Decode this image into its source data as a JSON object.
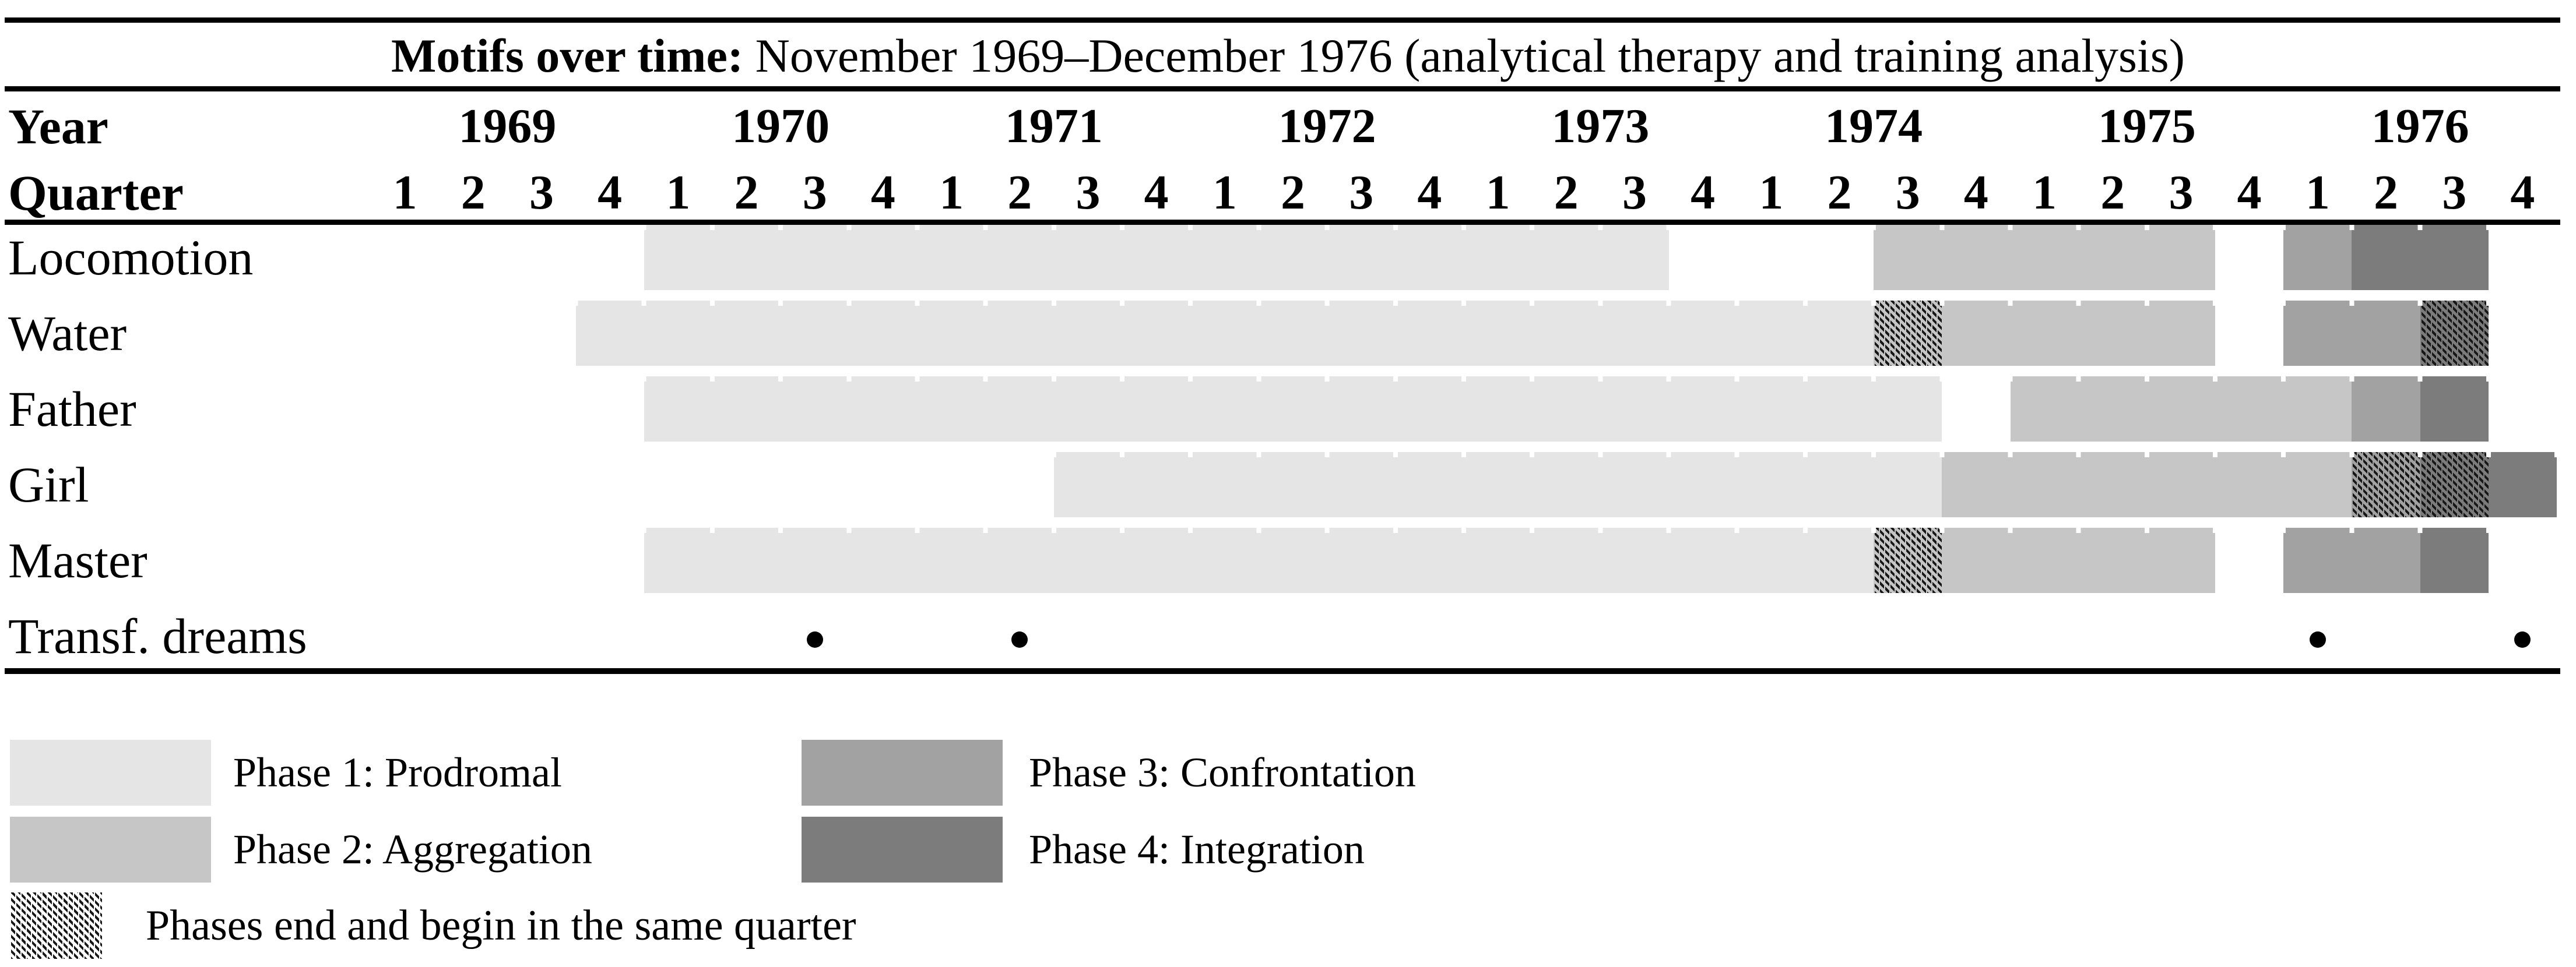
{
  "title": {
    "bold": "Motifs over time:",
    "rest": " November 1969–December 1976 (analytical therapy and training analysis)"
  },
  "header": {
    "year_label": "Year",
    "quarter_label": "Quarter",
    "years": [
      "1969",
      "1970",
      "1971",
      "1972",
      "1973",
      "1974",
      "1975",
      "1976"
    ],
    "quarter_numbers": [
      "1",
      "2",
      "3",
      "4"
    ]
  },
  "chart_data": {
    "type": "gantt-timeline",
    "title": "Motifs over time: November 1969–December 1976 (analytical therapy and training analysis)",
    "x_axis": {
      "unit": "quarter",
      "start": "1969 Q1",
      "end": "1976 Q4",
      "total_quarters": 32
    },
    "phases": {
      "1": "Prodromal",
      "2": "Aggregation",
      "3": "Confrontation",
      "4": "Integration"
    },
    "rows": [
      {
        "label": "Locomotion",
        "segments": [
          {
            "phase": 1,
            "from": 4,
            "to": 18,
            "range": "1970 Q1 – 1973 Q3"
          },
          {
            "phase": 2,
            "from": 22,
            "to": 26,
            "range": "1974 Q3 – 1975 Q3"
          },
          {
            "phase": 3,
            "from": 28,
            "to": 28,
            "range": "1976 Q1"
          },
          {
            "phase": 4,
            "from": 29,
            "to": 30,
            "range": "1976 Q2 – 1976 Q3"
          }
        ]
      },
      {
        "label": "Water",
        "segments": [
          {
            "phase": 1,
            "from": 3,
            "to": 21,
            "range": "1969 Q4 – 1974 Q2"
          },
          {
            "phase": 2,
            "from": 22,
            "to": 22,
            "hatch": true,
            "range": "1974 Q3"
          },
          {
            "phase": 2,
            "from": 23,
            "to": 26,
            "range": "1974 Q4 – 1975 Q3"
          },
          {
            "phase": 3,
            "from": 28,
            "to": 29,
            "range": "1976 Q1 – 1976 Q2"
          },
          {
            "phase": 4,
            "from": 30,
            "to": 30,
            "hatch": true,
            "range": "1976 Q3"
          }
        ]
      },
      {
        "label": "Father",
        "segments": [
          {
            "phase": 1,
            "from": 4,
            "to": 22,
            "range": "1970 Q1 – 1974 Q3"
          },
          {
            "phase": 2,
            "from": 24,
            "to": 28,
            "range": "1975 Q1 – 1976 Q1"
          },
          {
            "phase": 3,
            "from": 29,
            "to": 29,
            "range": "1976 Q2"
          },
          {
            "phase": 4,
            "from": 30,
            "to": 30,
            "range": "1976 Q3"
          }
        ]
      },
      {
        "label": "Girl",
        "segments": [
          {
            "phase": 1,
            "from": 10,
            "to": 22,
            "range": "1971 Q3 – 1974 Q3"
          },
          {
            "phase": 2,
            "from": 23,
            "to": 28,
            "range": "1974 Q4 – 1976 Q1"
          },
          {
            "phase": 3,
            "from": 29,
            "to": 29,
            "hatch": true,
            "range": "1976 Q2"
          },
          {
            "phase": 4,
            "from": 30,
            "to": 30,
            "hatch": true,
            "range": "1976 Q3"
          },
          {
            "phase": 4,
            "from": 31,
            "to": 31,
            "range": "1976 Q4"
          }
        ]
      },
      {
        "label": "Master",
        "segments": [
          {
            "phase": 1,
            "from": 4,
            "to": 21,
            "range": "1970 Q1 – 1974 Q2"
          },
          {
            "phase": 2,
            "from": 22,
            "to": 22,
            "hatch": true,
            "range": "1974 Q3"
          },
          {
            "phase": 2,
            "from": 23,
            "to": 26,
            "range": "1974 Q4 – 1975 Q3"
          },
          {
            "phase": 3,
            "from": 28,
            "to": 29,
            "range": "1976 Q1 – 1976 Q2"
          },
          {
            "phase": 4,
            "from": 30,
            "to": 30,
            "range": "1976 Q3"
          }
        ]
      },
      {
        "label": "Transf. dreams",
        "dots": [
          6,
          9,
          28,
          31
        ],
        "dot_quarters": [
          "1970 Q3",
          "1971 Q2",
          "1976 Q1",
          "1976 Q4"
        ]
      }
    ]
  },
  "legend": {
    "items": [
      {
        "label": "Phase 1: Prodromal",
        "phase": 1
      },
      {
        "label": "Phase 2: Aggregation",
        "phase": 2
      },
      {
        "label": "Phase 3: Confrontation",
        "phase": 3
      },
      {
        "label": "Phase 4: Integration",
        "phase": 4
      }
    ],
    "hatch_note": "Phases end and begin in the same quarter"
  },
  "colors": {
    "phase1": "#e5e5e5",
    "phase2": "#c6c6c6",
    "phase3": "#a2a2a2",
    "phase4": "#7c7c7c",
    "hatch_line": "#161616",
    "dot": "#000000",
    "rule": "#000000",
    "background": "#ffffff"
  }
}
